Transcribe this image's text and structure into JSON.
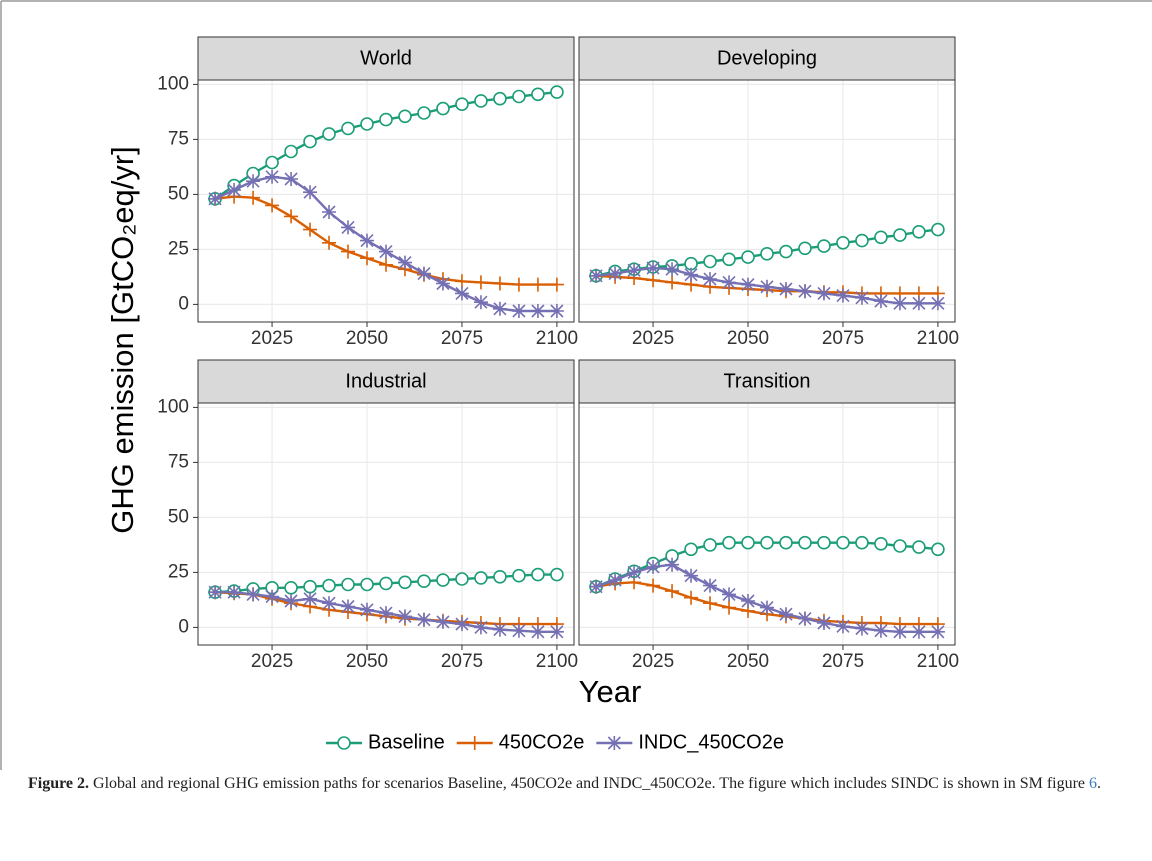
{
  "chart_data": [
    {
      "type": "line",
      "title": "World",
      "x": [
        2010,
        2015,
        2020,
        2025,
        2030,
        2035,
        2040,
        2045,
        2050,
        2055,
        2060,
        2065,
        2070,
        2075,
        2080,
        2085,
        2090,
        2095,
        2100
      ],
      "xlim": [
        2005.5,
        2104.5
      ],
      "xticks": [
        2025,
        2050,
        2075,
        2100
      ],
      "ylim": [
        -8,
        102
      ],
      "yticks": [
        0,
        25,
        50,
        75,
        100
      ],
      "grid": true,
      "series": [
        {
          "name": "Baseline",
          "color": "#1b9e77",
          "marker": "circle",
          "values": [
            48,
            54,
            59.5,
            64.5,
            69.5,
            74,
            77.5,
            80,
            82,
            84,
            85.5,
            87,
            89,
            91,
            92.5,
            93.5,
            94.5,
            95.5,
            96.5
          ]
        },
        {
          "name": "450CO2e",
          "color": "#d95f02",
          "marker": "plus",
          "values": [
            48,
            49,
            48.5,
            45,
            40,
            34,
            28,
            24,
            21,
            18,
            16,
            13.5,
            11.5,
            10.5,
            10,
            9.5,
            9,
            9,
            9
          ]
        },
        {
          "name": "INDC_450CO2e",
          "color": "#7570b3",
          "marker": "asterisk",
          "values": [
            48,
            52,
            56,
            58,
            57,
            51,
            42,
            35,
            29,
            24,
            19,
            14,
            9.5,
            5,
            1,
            -2,
            -3,
            -3,
            -3
          ]
        }
      ]
    },
    {
      "type": "line",
      "title": "Developing",
      "x": [
        2010,
        2015,
        2020,
        2025,
        2030,
        2035,
        2040,
        2045,
        2050,
        2055,
        2060,
        2065,
        2070,
        2075,
        2080,
        2085,
        2090,
        2095,
        2100
      ],
      "xlim": [
        2005.5,
        2104.5
      ],
      "xticks": [
        2025,
        2050,
        2075,
        2100
      ],
      "ylim": [
        -8,
        102
      ],
      "yticks": [
        0,
        25,
        50,
        75,
        100
      ],
      "grid": true,
      "series": [
        {
          "name": "Baseline",
          "color": "#1b9e77",
          "marker": "circle",
          "values": [
            13,
            15,
            16,
            17,
            17.5,
            18.5,
            19.5,
            20.5,
            21.5,
            23,
            24,
            25.5,
            26.5,
            28,
            29,
            30.5,
            31.5,
            33,
            34
          ]
        },
        {
          "name": "450CO2e",
          "color": "#d95f02",
          "marker": "plus",
          "values": [
            13,
            12.5,
            12,
            11,
            10,
            9,
            8,
            7.5,
            7,
            6.5,
            6,
            6,
            5.5,
            5.5,
            5,
            5,
            5,
            5,
            5
          ]
        },
        {
          "name": "INDC_450CO2e",
          "color": "#7570b3",
          "marker": "asterisk",
          "values": [
            13,
            14,
            15.5,
            16.5,
            16,
            13.5,
            11.5,
            10,
            9,
            8,
            7,
            6,
            5,
            4,
            3,
            1.5,
            0.5,
            0.5,
            0.5
          ]
        }
      ]
    },
    {
      "type": "line",
      "title": "Industrial",
      "x": [
        2010,
        2015,
        2020,
        2025,
        2030,
        2035,
        2040,
        2045,
        2050,
        2055,
        2060,
        2065,
        2070,
        2075,
        2080,
        2085,
        2090,
        2095,
        2100
      ],
      "xlim": [
        2005.5,
        2104.5
      ],
      "xticks": [
        2025,
        2050,
        2075,
        2100
      ],
      "ylim": [
        -8,
        102
      ],
      "yticks": [
        0,
        25,
        50,
        75,
        100
      ],
      "grid": true,
      "series": [
        {
          "name": "Baseline",
          "color": "#1b9e77",
          "marker": "circle",
          "values": [
            16,
            16.5,
            17.5,
            18,
            18,
            18.5,
            19,
            19.5,
            19.5,
            20,
            20.5,
            21,
            21.5,
            22,
            22.5,
            23,
            23.5,
            24,
            24
          ]
        },
        {
          "name": "450CO2e",
          "color": "#d95f02",
          "marker": "plus",
          "values": [
            16,
            15.5,
            15,
            13,
            11,
            9.5,
            8,
            7,
            6,
            5,
            4,
            3.5,
            3,
            2.5,
            2,
            1.5,
            1.5,
            1.5,
            1.5
          ]
        },
        {
          "name": "INDC_450CO2e",
          "color": "#7570b3",
          "marker": "asterisk",
          "values": [
            16,
            16,
            15,
            14,
            12,
            13,
            11,
            9.5,
            8,
            6.5,
            5,
            3.5,
            2.5,
            1.5,
            0,
            -1,
            -1.5,
            -2,
            -2
          ]
        }
      ]
    },
    {
      "type": "line",
      "title": "Transition",
      "x": [
        2010,
        2015,
        2020,
        2025,
        2030,
        2035,
        2040,
        2045,
        2050,
        2055,
        2060,
        2065,
        2070,
        2075,
        2080,
        2085,
        2090,
        2095,
        2100
      ],
      "xlim": [
        2005.5,
        2104.5
      ],
      "xticks": [
        2025,
        2050,
        2075,
        2100
      ],
      "ylim": [
        -8,
        102
      ],
      "yticks": [
        0,
        25,
        50,
        75,
        100
      ],
      "grid": true,
      "series": [
        {
          "name": "Baseline",
          "color": "#1b9e77",
          "marker": "circle",
          "values": [
            18.5,
            22,
            25.5,
            29,
            32.5,
            35.5,
            37.5,
            38.5,
            38.5,
            38.5,
            38.5,
            38.5,
            38.5,
            38.5,
            38.5,
            38,
            37,
            36.5,
            35.5
          ]
        },
        {
          "name": "450CO2e",
          "color": "#d95f02",
          "marker": "plus",
          "values": [
            18.5,
            20,
            20.5,
            19,
            16.5,
            13.5,
            11,
            9,
            7.5,
            6,
            5,
            4,
            3,
            2.5,
            2,
            2,
            1.5,
            1.5,
            1.5
          ]
        },
        {
          "name": "INDC_450CO2e",
          "color": "#7570b3",
          "marker": "asterisk",
          "values": [
            18.5,
            21.5,
            25,
            27.5,
            28.5,
            23.5,
            19,
            15,
            12,
            9,
            6,
            4,
            2,
            0.5,
            -0.5,
            -1.5,
            -2,
            -2,
            -2
          ]
        }
      ]
    }
  ],
  "y_label": "GHG emission [GtCO₂eq/yr]",
  "x_label": "Year",
  "caption": {
    "label": "Figure 2.",
    "text": " Global and regional GHG emission paths for scenarios Baseline, 450CO2e and INDC_450CO2e. The figure which includes SINDC is shown in SM figure ",
    "link": "6",
    "end": "."
  }
}
